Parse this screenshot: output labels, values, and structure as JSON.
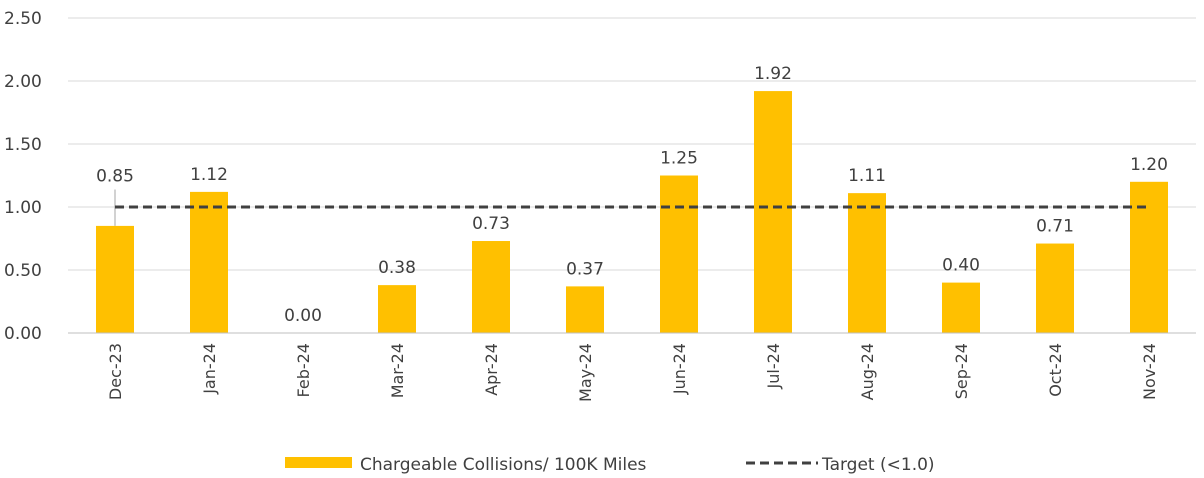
{
  "chart_data": {
    "type": "bar",
    "title": "",
    "xlabel": "",
    "ylabel": "",
    "categories": [
      "Dec-23",
      "Jan-24",
      "Feb-24",
      "Mar-24",
      "Apr-24",
      "May-24",
      "Jun-24",
      "Jul-24",
      "Aug-24",
      "Sep-24",
      "Oct-24",
      "Nov-24"
    ],
    "series": [
      {
        "name": "Chargeable Collisions/ 100K Miles",
        "type": "bar",
        "color": "#FFC000",
        "values": [
          0.85,
          1.12,
          0.0,
          0.38,
          0.73,
          0.37,
          1.25,
          1.92,
          1.11,
          0.4,
          0.71,
          1.2
        ],
        "data_labels": [
          "0.85",
          "1.12",
          "0.00",
          "0.38",
          "0.73",
          "0.37",
          "1.25",
          "1.92",
          "1.11",
          "0.40",
          "0.71",
          "1.20"
        ]
      },
      {
        "name": "Target (<1.0)",
        "type": "line",
        "style": "dashed",
        "color": "#404040",
        "values": [
          1.0,
          1.0,
          1.0,
          1.0,
          1.0,
          1.0,
          1.0,
          1.0,
          1.0,
          1.0,
          1.0,
          1.0
        ]
      }
    ],
    "ylim": [
      0,
      2.5
    ],
    "y_ticks": [
      "0.00",
      "0.50",
      "1.00",
      "1.50",
      "2.00",
      "2.50"
    ],
    "grid": true,
    "legend_position": "bottom"
  }
}
